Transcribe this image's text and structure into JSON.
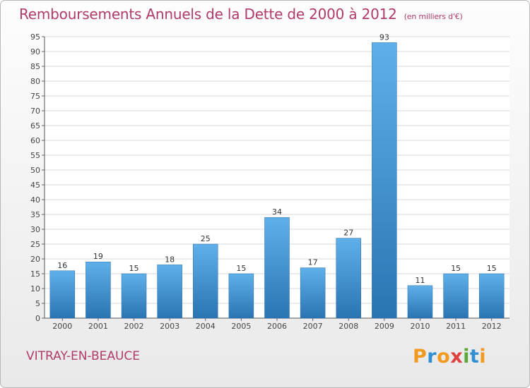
{
  "title": "Remboursements Annuels de la Dette de 2000 à 2012",
  "unit": "(en milliers d'€)",
  "commune": "VITRAY-EN-BEAUCE",
  "logo": {
    "letters": [
      "P",
      "r",
      "o",
      "x",
      "i",
      "t",
      "i"
    ],
    "colors": [
      "#f29a1f",
      "#2f8fd0",
      "#f29a1f",
      "#e0403d",
      "#5aa83a",
      "#2f8fd0",
      "#f29a1f"
    ]
  },
  "colors": {
    "bar": "#3a93d6",
    "bar_light": "#5fb0ea",
    "bar_dark": "#2a74b2",
    "title": "#b03a6a"
  },
  "chart_data": {
    "type": "bar",
    "title": "Remboursements Annuels de la Dette de 2000 à 2012",
    "xlabel": "",
    "ylabel": "",
    "categories": [
      "2000",
      "2001",
      "2002",
      "2003",
      "2004",
      "2005",
      "2006",
      "2007",
      "2008",
      "2009",
      "2010",
      "2011",
      "2012"
    ],
    "values": [
      16,
      19,
      15,
      18,
      25,
      15,
      34,
      17,
      27,
      93,
      11,
      15,
      15
    ],
    "ylim": [
      0,
      95
    ],
    "yticks": [
      0,
      5,
      10,
      15,
      20,
      25,
      30,
      35,
      40,
      45,
      50,
      55,
      60,
      65,
      70,
      75,
      80,
      85,
      90,
      95
    ],
    "grid": true
  }
}
